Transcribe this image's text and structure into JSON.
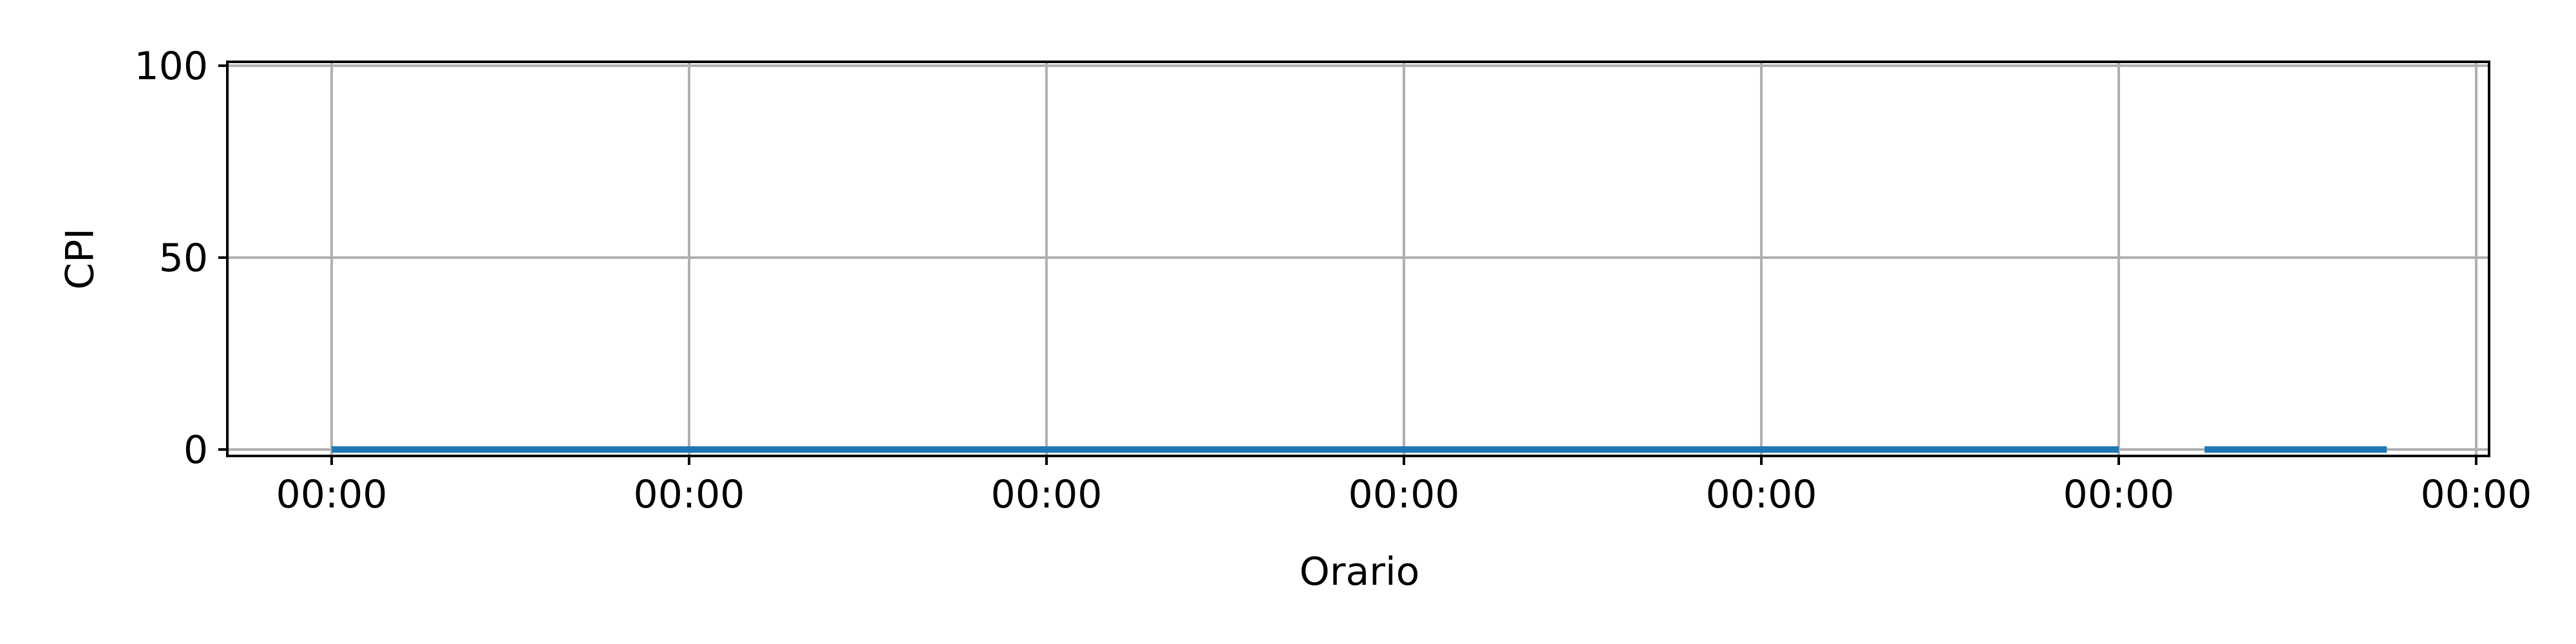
{
  "chart_data": {
    "type": "line",
    "title": "",
    "xlabel": "Orario",
    "ylabel": "CPI",
    "x_tick_labels": [
      "00:00",
      "00:00",
      "00:00",
      "00:00",
      "00:00",
      "00:00",
      "00:00"
    ],
    "ylim": [
      0,
      100
    ],
    "y_ticks": [
      0,
      50,
      100
    ],
    "y_tick_labels": [
      "0",
      "50",
      "100"
    ],
    "grid": true,
    "series": [
      {
        "color": "#1f77b4",
        "segments": [
          {
            "x": [
              0,
              5
            ],
            "y": [
              0,
              0
            ]
          },
          {
            "x": [
              5.24,
              5.75
            ],
            "y": [
              0,
              0
            ]
          }
        ]
      }
    ]
  }
}
